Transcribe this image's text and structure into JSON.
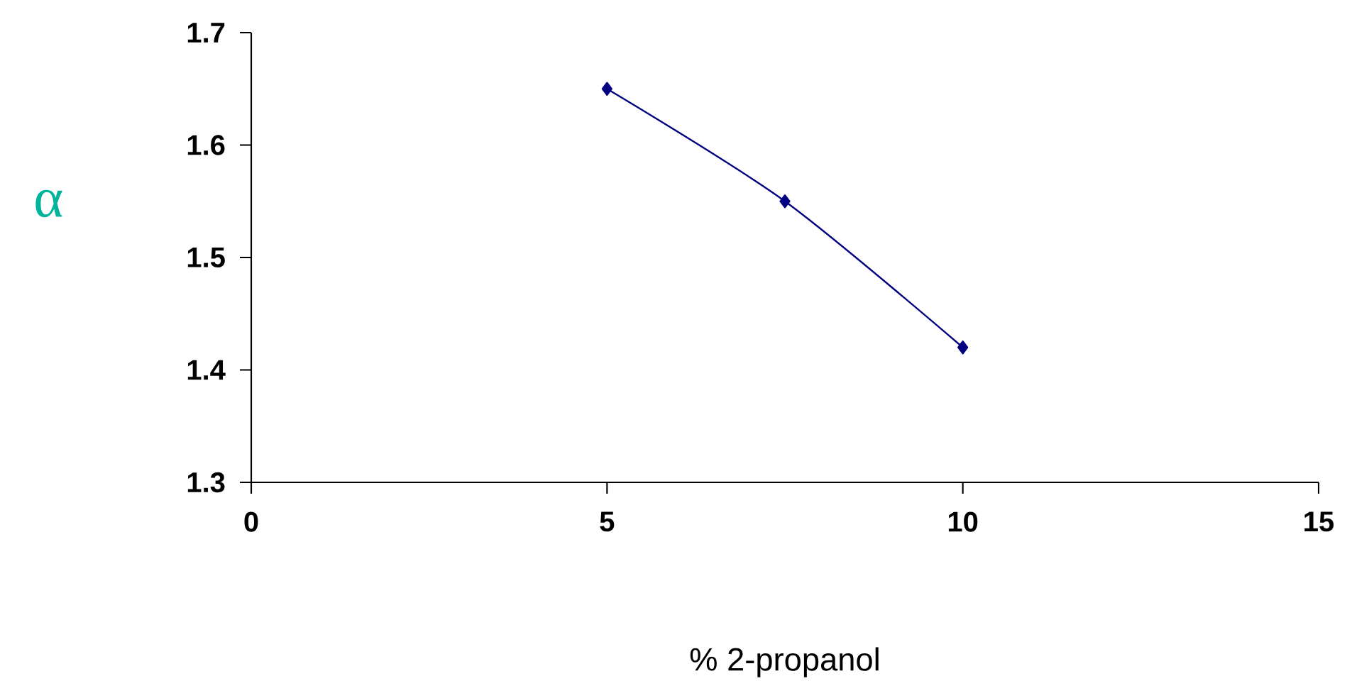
{
  "chart_data": {
    "type": "line",
    "xlabel": "% 2-propanol",
    "ylabel": "α",
    "x": [
      5,
      7.5,
      10
    ],
    "series": [
      {
        "color": "#000080",
        "values": [
          1.65,
          1.55,
          1.42
        ]
      }
    ],
    "xlim": [
      0,
      15
    ],
    "xticks": [
      0,
      5,
      10,
      15
    ],
    "ylim": [
      1.3,
      1.7
    ],
    "yticks": [
      1.3,
      1.4,
      1.5,
      1.6,
      1.7
    ],
    "marker": "diamond",
    "line_style": "solid",
    "grid": false
  }
}
